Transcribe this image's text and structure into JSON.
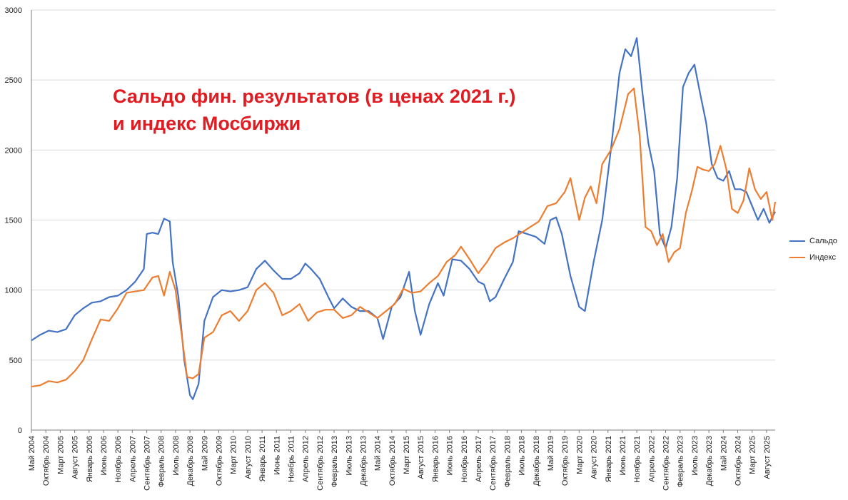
{
  "title_lines": [
    "Сальдо фин. результатов (в ценах 2021 г.)",
    "и индекс Мосбиржи"
  ],
  "colors": {
    "saldo": "#4472c4",
    "index": "#ed7d31",
    "title": "#e01b22",
    "grid": "#d9d9d9",
    "axis": "#7f7f7f"
  },
  "chart_data": {
    "type": "line",
    "ylim": [
      0,
      3000
    ],
    "yticks": [
      0,
      500,
      1000,
      1500,
      2000,
      2500,
      3000
    ],
    "x_start": "2004-05",
    "x_end": "2025-11",
    "grid": true,
    "legend_position": "right",
    "xtick_labels": [
      "Май 2004",
      "Октябрь 2004",
      "Март 2005",
      "Август 2005",
      "Январь 2006",
      "Июнь 2006",
      "Ноябрь 2006",
      "Апрель 2007",
      "Сентябрь 2007",
      "Февраль 2008",
      "Июль 2008",
      "Декабрь 2008",
      "Май 2009",
      "Октябрь 2009",
      "Март 2010",
      "Август 2010",
      "Январь 2011",
      "Июнь 2011",
      "Ноябрь 2011",
      "Апрель 2012",
      "Сентябрь 2012",
      "Февраль 2013",
      "Июль 2013",
      "Декабрь 2013",
      "Май 2014",
      "Октябрь 2014",
      "Март 2015",
      "Август 2015",
      "Январь 2016",
      "Июнь 2016",
      "Ноябрь 2016",
      "Апрель 2017",
      "Сентябрь 2017",
      "Февраль 2018",
      "Июль 2018",
      "Декабрь 2018",
      "Май 2019",
      "Октябрь 2019",
      "Март 2020",
      "Август 2020",
      "Январь 2021",
      "Июнь 2021",
      "Ноябрь 2021",
      "Апрель 2022",
      "Сентябрь 2022",
      "Февраль 2023",
      "Июль 2023",
      "Декабрь 2023",
      "Май 2024",
      "Октябрь 2024",
      "Март 2025",
      "Август 2025"
    ],
    "series": [
      {
        "name": "Сальдо",
        "points": [
          [
            "2004-05",
            640
          ],
          [
            "2004-08",
            680
          ],
          [
            "2004-11",
            710
          ],
          [
            "2005-02",
            700
          ],
          [
            "2005-05",
            720
          ],
          [
            "2005-08",
            820
          ],
          [
            "2005-11",
            870
          ],
          [
            "2006-02",
            910
          ],
          [
            "2006-05",
            920
          ],
          [
            "2006-08",
            950
          ],
          [
            "2006-11",
            960
          ],
          [
            "2007-02",
            1000
          ],
          [
            "2007-05",
            1060
          ],
          [
            "2007-08",
            1150
          ],
          [
            "2007-09",
            1400
          ],
          [
            "2007-11",
            1410
          ],
          [
            "2008-01",
            1400
          ],
          [
            "2008-03",
            1510
          ],
          [
            "2008-05",
            1490
          ],
          [
            "2008-06",
            1200
          ],
          [
            "2008-08",
            950
          ],
          [
            "2008-10",
            500
          ],
          [
            "2008-12",
            250
          ],
          [
            "2009-01",
            220
          ],
          [
            "2009-03",
            330
          ],
          [
            "2009-05",
            780
          ],
          [
            "2009-08",
            950
          ],
          [
            "2009-11",
            1000
          ],
          [
            "2010-02",
            990
          ],
          [
            "2010-05",
            1000
          ],
          [
            "2010-08",
            1020
          ],
          [
            "2010-11",
            1150
          ],
          [
            "2011-02",
            1210
          ],
          [
            "2011-05",
            1140
          ],
          [
            "2011-08",
            1080
          ],
          [
            "2011-11",
            1080
          ],
          [
            "2012-02",
            1120
          ],
          [
            "2012-04",
            1190
          ],
          [
            "2012-06",
            1150
          ],
          [
            "2012-09",
            1080
          ],
          [
            "2012-12",
            950
          ],
          [
            "2013-02",
            870
          ],
          [
            "2013-05",
            940
          ],
          [
            "2013-08",
            880
          ],
          [
            "2013-11",
            850
          ],
          [
            "2014-02",
            850
          ],
          [
            "2014-05",
            800
          ],
          [
            "2014-07",
            650
          ],
          [
            "2014-10",
            880
          ],
          [
            "2015-01",
            950
          ],
          [
            "2015-04",
            1130
          ],
          [
            "2015-06",
            850
          ],
          [
            "2015-08",
            680
          ],
          [
            "2015-11",
            900
          ],
          [
            "2016-02",
            1050
          ],
          [
            "2016-04",
            960
          ],
          [
            "2016-07",
            1220
          ],
          [
            "2016-10",
            1210
          ],
          [
            "2017-01",
            1150
          ],
          [
            "2017-04",
            1060
          ],
          [
            "2017-06",
            1040
          ],
          [
            "2017-08",
            920
          ],
          [
            "2017-10",
            950
          ],
          [
            "2018-01",
            1080
          ],
          [
            "2018-04",
            1200
          ],
          [
            "2018-06",
            1420
          ],
          [
            "2018-09",
            1400
          ],
          [
            "2018-12",
            1380
          ],
          [
            "2019-03",
            1330
          ],
          [
            "2019-05",
            1500
          ],
          [
            "2019-07",
            1520
          ],
          [
            "2019-09",
            1400
          ],
          [
            "2019-12",
            1100
          ],
          [
            "2020-03",
            880
          ],
          [
            "2020-05",
            850
          ],
          [
            "2020-08",
            1200
          ],
          [
            "2020-11",
            1500
          ],
          [
            "2021-02",
            2000
          ],
          [
            "2021-05",
            2550
          ],
          [
            "2021-07",
            2720
          ],
          [
            "2021-09",
            2670
          ],
          [
            "2021-11",
            2800
          ],
          [
            "2022-01",
            2400
          ],
          [
            "2022-03",
            2050
          ],
          [
            "2022-05",
            1850
          ],
          [
            "2022-07",
            1400
          ],
          [
            "2022-09",
            1300
          ],
          [
            "2022-11",
            1450
          ],
          [
            "2023-01",
            1800
          ],
          [
            "2023-03",
            2450
          ],
          [
            "2023-05",
            2550
          ],
          [
            "2023-07",
            2610
          ],
          [
            "2023-09",
            2400
          ],
          [
            "2023-11",
            2200
          ],
          [
            "2024-01",
            1900
          ],
          [
            "2024-03",
            1800
          ],
          [
            "2024-05",
            1780
          ],
          [
            "2024-07",
            1850
          ],
          [
            "2024-09",
            1720
          ],
          [
            "2024-11",
            1720
          ],
          [
            "2025-01",
            1700
          ],
          [
            "2025-03",
            1600
          ],
          [
            "2025-05",
            1500
          ],
          [
            "2025-07",
            1580
          ],
          [
            "2025-09",
            1480
          ],
          [
            "2025-11",
            1560
          ]
        ]
      },
      {
        "name": "Индекс",
        "points": [
          [
            "2004-05",
            310
          ],
          [
            "2004-08",
            320
          ],
          [
            "2004-11",
            350
          ],
          [
            "2005-02",
            340
          ],
          [
            "2005-05",
            360
          ],
          [
            "2005-08",
            420
          ],
          [
            "2005-11",
            500
          ],
          [
            "2006-02",
            650
          ],
          [
            "2006-05",
            790
          ],
          [
            "2006-08",
            780
          ],
          [
            "2006-11",
            870
          ],
          [
            "2007-02",
            980
          ],
          [
            "2007-05",
            990
          ],
          [
            "2007-08",
            1000
          ],
          [
            "2007-11",
            1090
          ],
          [
            "2008-01",
            1100
          ],
          [
            "2008-03",
            960
          ],
          [
            "2008-05",
            1130
          ],
          [
            "2008-07",
            1000
          ],
          [
            "2008-09",
            700
          ],
          [
            "2008-11",
            380
          ],
          [
            "2009-01",
            370
          ],
          [
            "2009-03",
            400
          ],
          [
            "2009-05",
            660
          ],
          [
            "2009-08",
            700
          ],
          [
            "2009-11",
            820
          ],
          [
            "2010-02",
            850
          ],
          [
            "2010-05",
            780
          ],
          [
            "2010-08",
            850
          ],
          [
            "2010-11",
            1000
          ],
          [
            "2011-02",
            1050
          ],
          [
            "2011-05",
            980
          ],
          [
            "2011-08",
            820
          ],
          [
            "2011-11",
            850
          ],
          [
            "2012-02",
            900
          ],
          [
            "2012-05",
            780
          ],
          [
            "2012-08",
            840
          ],
          [
            "2012-11",
            860
          ],
          [
            "2013-02",
            860
          ],
          [
            "2013-05",
            800
          ],
          [
            "2013-08",
            820
          ],
          [
            "2013-11",
            880
          ],
          [
            "2014-02",
            840
          ],
          [
            "2014-05",
            800
          ],
          [
            "2014-08",
            850
          ],
          [
            "2014-11",
            900
          ],
          [
            "2015-02",
            1010
          ],
          [
            "2015-05",
            980
          ],
          [
            "2015-08",
            990
          ],
          [
            "2015-11",
            1050
          ],
          [
            "2016-02",
            1100
          ],
          [
            "2016-05",
            1200
          ],
          [
            "2016-08",
            1250
          ],
          [
            "2016-10",
            1310
          ],
          [
            "2017-01",
            1220
          ],
          [
            "2017-04",
            1120
          ],
          [
            "2017-07",
            1200
          ],
          [
            "2017-10",
            1300
          ],
          [
            "2018-01",
            1340
          ],
          [
            "2018-04",
            1370
          ],
          [
            "2018-07",
            1410
          ],
          [
            "2018-10",
            1450
          ],
          [
            "2019-01",
            1490
          ],
          [
            "2019-04",
            1600
          ],
          [
            "2019-07",
            1620
          ],
          [
            "2019-10",
            1700
          ],
          [
            "2019-12",
            1800
          ],
          [
            "2020-03",
            1500
          ],
          [
            "2020-05",
            1660
          ],
          [
            "2020-07",
            1740
          ],
          [
            "2020-09",
            1620
          ],
          [
            "2020-11",
            1900
          ],
          [
            "2021-02",
            2000
          ],
          [
            "2021-05",
            2150
          ],
          [
            "2021-08",
            2400
          ],
          [
            "2021-10",
            2440
          ],
          [
            "2021-12",
            2100
          ],
          [
            "2022-02",
            1450
          ],
          [
            "2022-04",
            1420
          ],
          [
            "2022-06",
            1320
          ],
          [
            "2022-08",
            1400
          ],
          [
            "2022-10",
            1200
          ],
          [
            "2022-12",
            1270
          ],
          [
            "2023-02",
            1300
          ],
          [
            "2023-04",
            1550
          ],
          [
            "2023-06",
            1700
          ],
          [
            "2023-08",
            1880
          ],
          [
            "2023-10",
            1860
          ],
          [
            "2023-12",
            1850
          ],
          [
            "2024-02",
            1900
          ],
          [
            "2024-04",
            2030
          ],
          [
            "2024-06",
            1870
          ],
          [
            "2024-08",
            1580
          ],
          [
            "2024-10",
            1550
          ],
          [
            "2024-12",
            1640
          ],
          [
            "2025-02",
            1870
          ],
          [
            "2025-04",
            1720
          ],
          [
            "2025-06",
            1650
          ],
          [
            "2025-08",
            1700
          ],
          [
            "2025-10",
            1500
          ],
          [
            "2025-11",
            1630
          ]
        ]
      }
    ]
  }
}
